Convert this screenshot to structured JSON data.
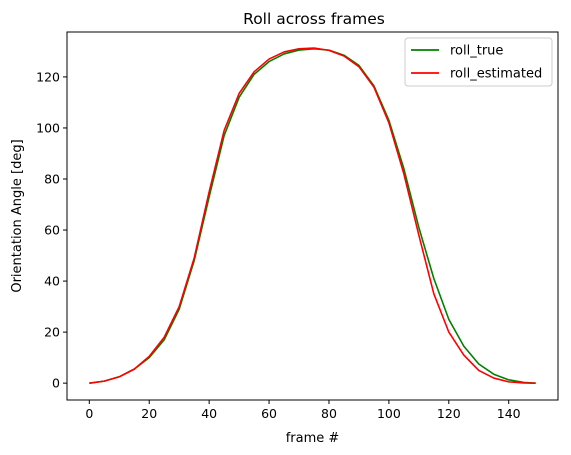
{
  "chart_data": {
    "type": "line",
    "title": "Roll across frames",
    "xlabel": "frame #",
    "ylabel": "Orientation Angle [deg]",
    "xlim": [
      -7.45,
      156.45
    ],
    "ylim": [
      -6.6,
      137.6
    ],
    "xticks": [
      0,
      20,
      40,
      60,
      80,
      100,
      120,
      140
    ],
    "yticks": [
      0,
      20,
      40,
      60,
      80,
      100,
      120
    ],
    "grid": false,
    "legend_position": "top-right",
    "series": [
      {
        "name": "roll_true",
        "color": "#008000",
        "x": [
          0,
          5,
          10,
          15,
          20,
          25,
          30,
          35,
          40,
          45,
          50,
          55,
          60,
          65,
          70,
          75,
          80,
          85,
          90,
          95,
          100,
          105,
          110,
          115,
          120,
          125,
          130,
          135,
          140,
          145,
          149
        ],
        "y": [
          0,
          0.8,
          2.5,
          5.5,
          10,
          17,
          29,
          48,
          73,
          97,
          112,
          121,
          126,
          129,
          130.5,
          131,
          130.5,
          128.5,
          124.5,
          116.5,
          103,
          84,
          61,
          41,
          25,
          14.5,
          7.5,
          3.5,
          1.3,
          0.3,
          0
        ]
      },
      {
        "name": "roll_estimated",
        "color": "#ff0000",
        "x": [
          0,
          5,
          10,
          15,
          20,
          25,
          30,
          35,
          40,
          45,
          50,
          55,
          60,
          65,
          70,
          75,
          80,
          85,
          90,
          95,
          100,
          105,
          110,
          115,
          120,
          125,
          130,
          135,
          140,
          145,
          149
        ],
        "y": [
          0,
          0.8,
          2.5,
          5.5,
          10.5,
          18,
          30,
          49,
          75,
          99,
          113.5,
          122,
          127,
          129.8,
          131,
          131.3,
          130.4,
          128.2,
          124,
          116,
          102,
          82,
          58,
          35,
          20,
          11,
          5,
          2,
          0.5,
          0.1,
          0
        ]
      }
    ]
  }
}
